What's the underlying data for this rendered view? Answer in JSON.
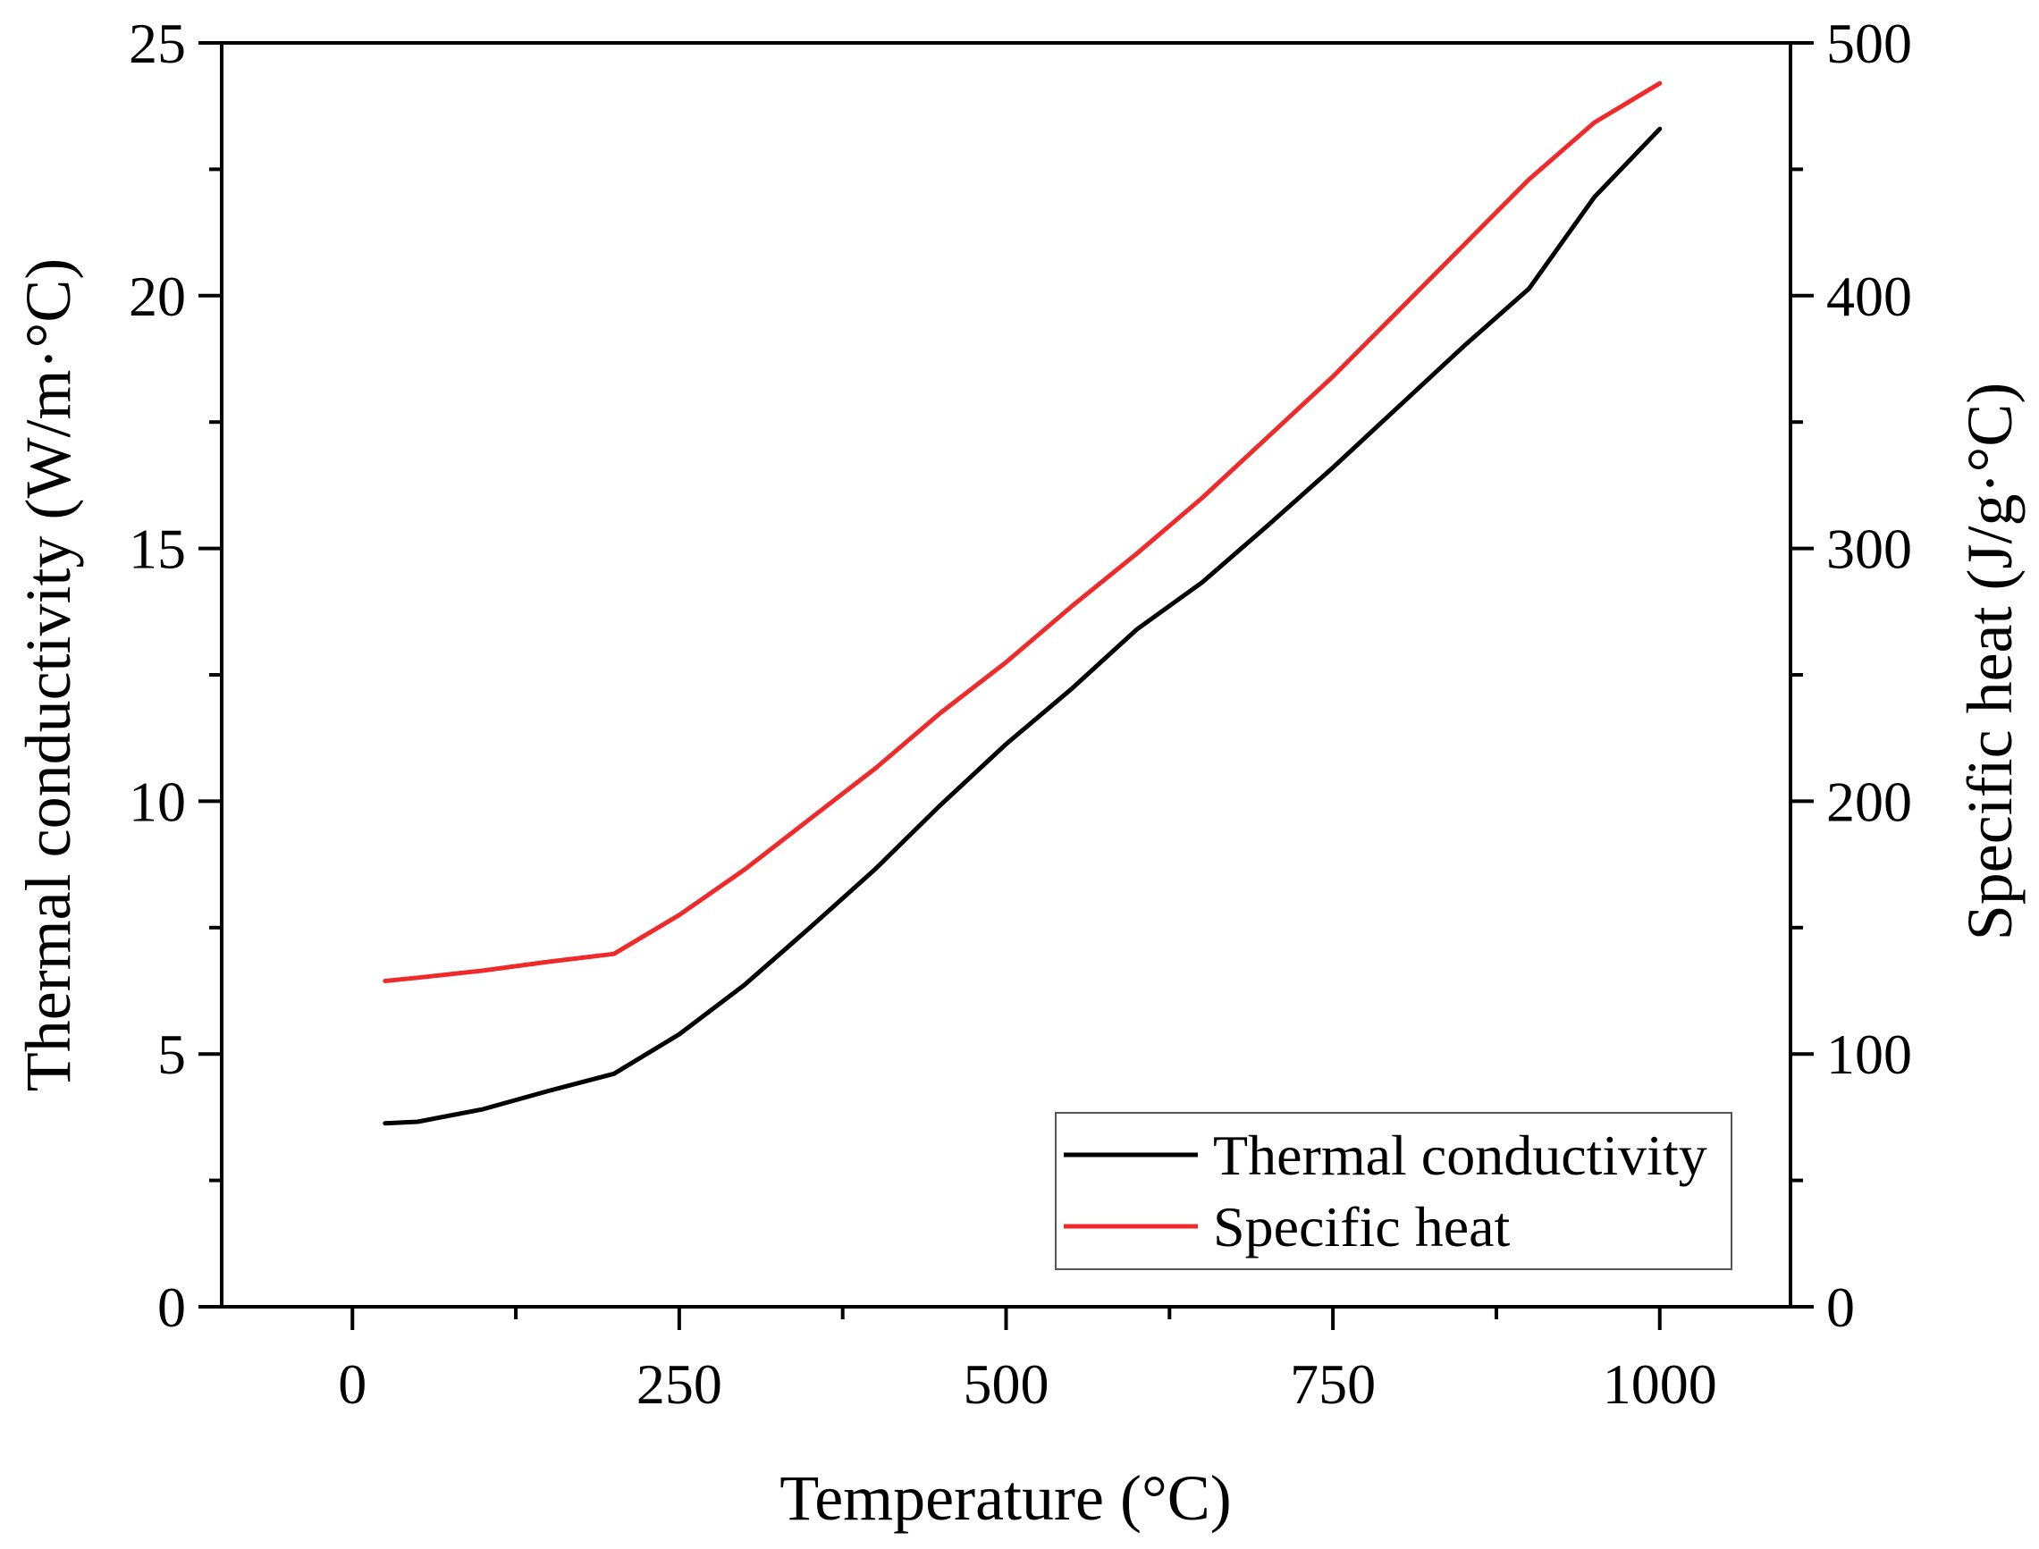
{
  "chart_data": {
    "type": "line",
    "xlabel": "Temperature (°C)",
    "ylabel": "Thermal conductivity (W/m·°C)",
    "y2label": "Specific heat (J/g·°C)",
    "xlim": [
      -100,
      1100
    ],
    "ylim": [
      0,
      25
    ],
    "y2lim": [
      0,
      500
    ],
    "x_ticks": [
      0,
      250,
      500,
      750,
      1000
    ],
    "y_ticks": [
      0,
      5,
      10,
      15,
      20,
      25
    ],
    "y2_ticks": [
      0,
      100,
      200,
      300,
      400,
      500
    ],
    "grid": false,
    "legend_position": "bottom-right",
    "series": [
      {
        "name": "Thermal conductivity",
        "axis": "left",
        "color": "#000000",
        "x": [
          25,
          50,
          100,
          150,
          200,
          250,
          300,
          350,
          400,
          450,
          500,
          550,
          600,
          650,
          700,
          750,
          800,
          850,
          900,
          950,
          1000
        ],
        "values": [
          3.63,
          3.66,
          3.91,
          4.27,
          4.61,
          5.39,
          6.37,
          7.5,
          8.66,
          9.93,
          11.13,
          12.22,
          13.4,
          14.33,
          15.45,
          16.6,
          17.8,
          19.0,
          20.14,
          21.95,
          23.3
        ]
      },
      {
        "name": "Specific heat",
        "axis": "right",
        "color": "#ee2a2a",
        "x": [
          25,
          50,
          100,
          150,
          200,
          250,
          300,
          350,
          400,
          450,
          500,
          550,
          600,
          650,
          700,
          750,
          800,
          850,
          900,
          950,
          1000
        ],
        "values": [
          128.9,
          130.2,
          133.0,
          136.5,
          139.6,
          155.0,
          173.0,
          193.0,
          213.0,
          235.0,
          255.0,
          277.0,
          298.0,
          320.0,
          344.0,
          368.0,
          394.0,
          420.0,
          446.0,
          468.5,
          484.0
        ]
      }
    ]
  }
}
